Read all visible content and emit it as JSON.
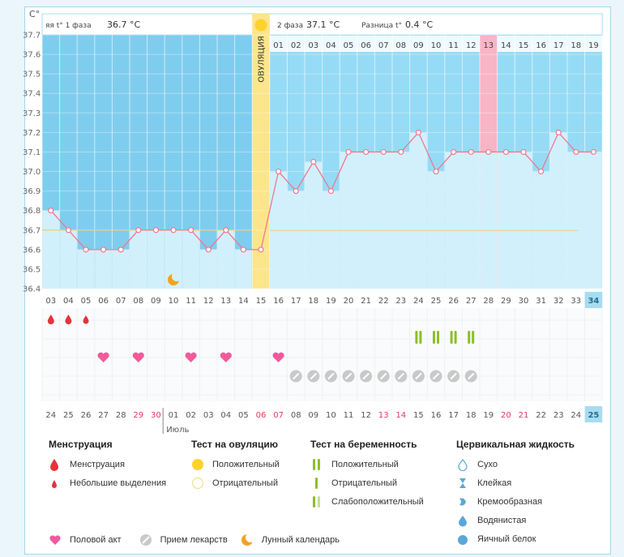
{
  "header": {
    "unit_label": "C°",
    "phase1_label": "яя t° 1 фаза",
    "phase1_value": "36.7 °C",
    "phase2_label": "2 фаза",
    "phase2_value": "37.1 °C",
    "diff_label": "Разница t°",
    "diff_value": "0.4 °C",
    "ovulation_label": "ОВУЛЯЦИЯ"
  },
  "colors": {
    "phase1_bg": "#7fcdee",
    "phase2_bg": "#96dbf5",
    "ovulation": "#fce58a",
    "highlight_day": "#f8b5c5",
    "line": "#f07891",
    "red": "#e5333b",
    "pink": "#f25a9b",
    "green": "#8cbf26"
  },
  "chart_data": {
    "type": "line",
    "title": "",
    "ylabel": "C°",
    "ylim": [
      36.4,
      37.7
    ],
    "yticks": [
      "36.4",
      "36.5",
      "36.6",
      "36.7",
      "36.8",
      "36.9",
      "37.0",
      "37.1",
      "37.2",
      "37.3",
      "37.4",
      "37.5",
      "37.6",
      "37.7"
    ],
    "cycle_days": [
      "03",
      "04",
      "05",
      "06",
      "07",
      "08",
      "09",
      "10",
      "11",
      "12",
      "13",
      "14",
      "15",
      "16",
      "17",
      "18",
      "19",
      "20",
      "21",
      "22",
      "23",
      "24",
      "25",
      "26",
      "27",
      "28",
      "29",
      "30",
      "31",
      "32",
      "33",
      "34"
    ],
    "phase2_days": [
      "01",
      "02",
      "03",
      "04",
      "05",
      "06",
      "07",
      "08",
      "09",
      "10",
      "11",
      "12",
      "13",
      "14",
      "15",
      "16",
      "17",
      "18",
      "19"
    ],
    "series": [
      {
        "values": [
          36.8,
          36.7,
          36.6,
          36.6,
          36.6,
          36.7,
          36.7,
          36.7,
          36.7,
          36.6,
          36.7,
          36.6,
          36.6,
          37.0,
          36.9,
          37.05,
          36.9,
          37.1,
          37.1,
          37.1,
          37.1,
          37.2,
          37.0,
          37.1,
          37.1,
          37.1,
          37.1,
          37.1,
          37.0,
          37.2,
          37.1,
          37.1
        ]
      }
    ],
    "cover_line_1": 36.7,
    "cover_line_2": 37.1,
    "ovulation_day": "15",
    "highlight_phase2_day": "13",
    "current_day": "34"
  },
  "calendar": {
    "dates": [
      "24",
      "25",
      "26",
      "27",
      "28",
      "29",
      "30",
      "01",
      "02",
      "03",
      "04",
      "05",
      "06",
      "07",
      "08",
      "09",
      "10",
      "11",
      "12",
      "13",
      "14",
      "15",
      "16",
      "17",
      "18",
      "19",
      "20",
      "21",
      "22",
      "23",
      "24",
      "25"
    ],
    "month_label": "Июль",
    "weekend_flags": [
      false,
      false,
      false,
      false,
      false,
      true,
      true,
      false,
      false,
      false,
      false,
      false,
      true,
      true,
      false,
      false,
      false,
      false,
      false,
      true,
      true,
      false,
      false,
      false,
      false,
      false,
      true,
      true,
      false,
      false,
      false,
      false
    ]
  },
  "markers": {
    "menstruation_heavy": [
      "03",
      "04"
    ],
    "menstruation_light": [
      "05"
    ],
    "intercourse": [
      "06",
      "08",
      "11",
      "13",
      "16"
    ],
    "pregnancy_positive": [
      "24",
      "25",
      "26",
      "27"
    ],
    "medication": [
      "17",
      "18",
      "19",
      "20",
      "21",
      "22",
      "23",
      "24",
      "25",
      "26",
      "27"
    ],
    "moon": [
      "10"
    ]
  },
  "legend": {
    "menstruation": {
      "title": "Менструация",
      "items": [
        "Менструация",
        "Небольшие выделения"
      ]
    },
    "ovulation_test": {
      "title": "Тест на овуляцию",
      "items": [
        "Положительный",
        "Отрицательный"
      ]
    },
    "pregnancy_test": {
      "title": "Тест на беременность",
      "items": [
        "Положительный",
        "Отрицательный",
        "Слабоположительный"
      ]
    },
    "cervical": {
      "title": "Цервикальная жидкость",
      "items": [
        "Сухо",
        "Клейкая",
        "Кремообразная",
        "Водянистая",
        "Яичный белок"
      ]
    },
    "bottom": [
      "Половой акт",
      "Прием лекарств",
      "Лунный календарь"
    ]
  }
}
